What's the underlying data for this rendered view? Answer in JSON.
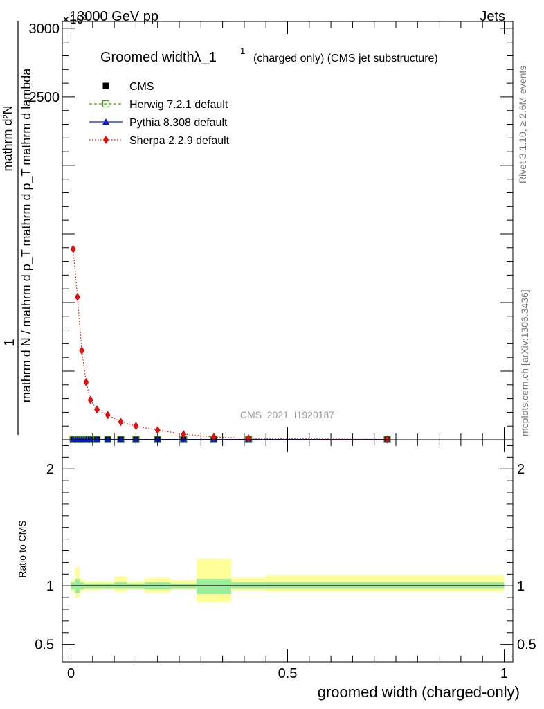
{
  "header": {
    "left": "13000 GeV pp",
    "right": "Jets",
    "exponent": "×10³"
  },
  "side_labels": {
    "rivet": "Rivet 3.1.10, ≥ 2.6M events",
    "mcplots": "mcplots.cern.ch [arXiv:1306.3436]"
  },
  "watermark": "CMS_2021_I1920187",
  "chart_data": [
    {
      "type": "line",
      "title": "Groomed widthλ_1",
      "title_sup": "1",
      "title_suffix": "(charged only) (CMS jet substructure)",
      "xlabel": "groomed width (charged-only)",
      "ylabel_numerator": "1",
      "ylabel_denominator": "mathrm d N / mathrm d p_T mathrm d p_T mathrm d lambda",
      "ylabel_overlay": "mathrm d²N",
      "xlim": [
        -0.02,
        1.02
      ],
      "ylim": [
        0,
        3.05
      ],
      "y_ticks": [
        {
          "value": 2.5,
          "label": "2500"
        },
        {
          "value": 3.0,
          "label": "3000"
        }
      ],
      "x_ticks": [
        {
          "value": 0,
          "label": "0"
        },
        {
          "value": 0.5,
          "label": "0.5"
        },
        {
          "value": 1,
          "label": "1"
        }
      ],
      "legend_placement": "top-left",
      "series": [
        {
          "name": "CMS",
          "color": "#000000",
          "marker": "square",
          "x": [
            0.005,
            0.015,
            0.025,
            0.035,
            0.045,
            0.06,
            0.085,
            0.115,
            0.15,
            0.2,
            0.26,
            0.33,
            0.41,
            0.73
          ],
          "y": [
            0.002,
            0.002,
            0.002,
            0.002,
            0.002,
            0.002,
            0.002,
            0.002,
            0.002,
            0.002,
            0.002,
            0.002,
            0.002,
            0.002
          ]
        },
        {
          "name": "Herwig 7.2.1 default",
          "color": "#4a9a1a",
          "marker": "open-square",
          "dash": "4,3",
          "x": [
            0.005,
            0.015,
            0.025,
            0.035,
            0.045,
            0.06,
            0.085,
            0.115,
            0.15,
            0.2,
            0.26,
            0.33,
            0.41,
            0.73
          ],
          "y": [
            0.002,
            0.002,
            0.002,
            0.002,
            0.002,
            0.002,
            0.002,
            0.002,
            0.002,
            0.002,
            0.002,
            0.002,
            0.002,
            0.002
          ]
        },
        {
          "name": "Pythia 8.308 default",
          "color": "#0a1ad0",
          "marker": "triangle",
          "x": [
            0.005,
            0.015,
            0.025,
            0.035,
            0.045,
            0.06,
            0.085,
            0.115,
            0.15,
            0.2,
            0.26,
            0.33,
            0.41,
            0.73
          ],
          "y": [
            0.002,
            0.002,
            0.002,
            0.002,
            0.002,
            0.002,
            0.002,
            0.002,
            0.002,
            0.002,
            0.002,
            0.002,
            0.002,
            0.002
          ]
        },
        {
          "name": "Sherpa 2.2.9 default",
          "color": "#e01010",
          "marker": "diamond",
          "dash": "1.5,2.5",
          "x": [
            0.005,
            0.015,
            0.025,
            0.035,
            0.045,
            0.06,
            0.085,
            0.115,
            0.15,
            0.2,
            0.26,
            0.33,
            0.41,
            0.73
          ],
          "y": [
            1.39,
            1.04,
            0.65,
            0.42,
            0.29,
            0.22,
            0.18,
            0.13,
            0.1,
            0.07,
            0.04,
            0.02,
            0.01,
            0.002
          ]
        }
      ]
    },
    {
      "type": "area",
      "ylabel": "Ratio to CMS",
      "xlim": [
        -0.02,
        1.02
      ],
      "ylim": [
        0.35,
        2.25
      ],
      "y_ticks": [
        {
          "value": 0.5,
          "label": "0.5"
        },
        {
          "value": 1,
          "label": "1"
        },
        {
          "value": 2,
          "label": "2"
        }
      ],
      "bands": [
        {
          "x0": 0.0,
          "x1": 0.01,
          "stat": [
            0.97,
            1.03
          ],
          "total": [
            0.95,
            1.05
          ]
        },
        {
          "x0": 0.01,
          "x1": 0.02,
          "stat": [
            0.94,
            1.06
          ],
          "total": [
            0.9,
            1.16
          ]
        },
        {
          "x0": 0.02,
          "x1": 0.03,
          "stat": [
            0.97,
            1.03
          ],
          "total": [
            0.95,
            1.06
          ]
        },
        {
          "x0": 0.03,
          "x1": 0.05,
          "stat": [
            0.98,
            1.02
          ],
          "total": [
            0.96,
            1.04
          ]
        },
        {
          "x0": 0.05,
          "x1": 0.07,
          "stat": [
            0.98,
            1.02
          ],
          "total": [
            0.96,
            1.04
          ]
        },
        {
          "x0": 0.07,
          "x1": 0.1,
          "stat": [
            0.98,
            1.02
          ],
          "total": [
            0.97,
            1.04
          ]
        },
        {
          "x0": 0.1,
          "x1": 0.13,
          "stat": [
            0.98,
            1.03
          ],
          "total": [
            0.95,
            1.08
          ]
        },
        {
          "x0": 0.13,
          "x1": 0.17,
          "stat": [
            0.98,
            1.02
          ],
          "total": [
            0.97,
            1.04
          ]
        },
        {
          "x0": 0.17,
          "x1": 0.23,
          "stat": [
            0.97,
            1.03
          ],
          "total": [
            0.94,
            1.07
          ]
        },
        {
          "x0": 0.23,
          "x1": 0.29,
          "stat": [
            0.98,
            1.02
          ],
          "total": [
            0.97,
            1.05
          ]
        },
        {
          "x0": 0.29,
          "x1": 0.37,
          "stat": [
            0.93,
            1.06
          ],
          "total": [
            0.86,
            1.23
          ]
        },
        {
          "x0": 0.37,
          "x1": 0.45,
          "stat": [
            0.98,
            1.03
          ],
          "total": [
            0.96,
            1.07
          ]
        },
        {
          "x0": 0.45,
          "x1": 1.0,
          "stat": [
            0.98,
            1.03
          ],
          "total": [
            0.95,
            1.09
          ]
        }
      ],
      "stat_color": "#99ee99",
      "total_color": "#ffff99",
      "reference_line": 1
    }
  ]
}
